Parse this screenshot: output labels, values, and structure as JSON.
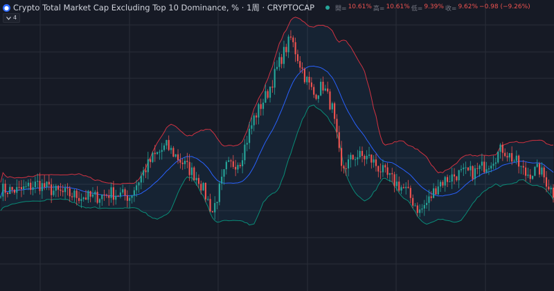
{
  "header": {
    "icon": "coin-icon",
    "title": "Crypto Total Market Cap Excluding Top 10 Dominance, % · 1周 · CRYPTOCAP",
    "ohlc": {
      "open_label": "開=",
      "open_value": "10.61%",
      "high_label": "高=",
      "high_value": "10.61%",
      "low_label": "低=",
      "low_value": "9.39%",
      "close_label": "收=",
      "close_value": "9.62%",
      "change": "−0.98 (−9.26%)"
    }
  },
  "indicator_toggle": {
    "icon": "chevron-down-icon",
    "count": "4"
  },
  "colors": {
    "background": "#161a25",
    "grid": "#2a2e39",
    "up": "#26a69a",
    "down": "#ef5350",
    "upper_band": "#f23645",
    "middle_band": "#2962ff",
    "lower_band": "#089981",
    "band_fill": "rgba(33,150,243,0.07)"
  },
  "chart_data": {
    "type": "candlestick",
    "bollinger_bands": true,
    "grid": true,
    "anchors": [
      [
        0,
        0.315
      ],
      [
        8,
        0.31
      ],
      [
        16,
        0.34
      ],
      [
        24,
        0.305
      ],
      [
        32,
        0.29
      ],
      [
        40,
        0.28
      ],
      [
        48,
        0.3
      ],
      [
        56,
        0.285
      ],
      [
        62,
        0.39
      ],
      [
        66,
        0.45
      ],
      [
        72,
        0.5
      ],
      [
        80,
        0.42
      ],
      [
        86,
        0.36
      ],
      [
        92,
        0.22
      ],
      [
        98,
        0.41
      ],
      [
        104,
        0.44
      ],
      [
        110,
        0.62
      ],
      [
        116,
        0.73
      ],
      [
        122,
        0.88
      ],
      [
        126,
        0.96
      ],
      [
        132,
        0.8
      ],
      [
        136,
        0.72
      ],
      [
        140,
        0.76
      ],
      [
        144,
        0.66
      ],
      [
        148,
        0.4
      ],
      [
        154,
        0.46
      ],
      [
        160,
        0.45
      ],
      [
        168,
        0.37
      ],
      [
        176,
        0.31
      ],
      [
        182,
        0.22
      ],
      [
        186,
        0.27
      ],
      [
        190,
        0.34
      ],
      [
        198,
        0.38
      ],
      [
        206,
        0.39
      ],
      [
        212,
        0.43
      ],
      [
        218,
        0.49
      ],
      [
        224,
        0.43
      ],
      [
        228,
        0.38
      ],
      [
        234,
        0.4
      ],
      [
        240,
        0.3
      ]
    ],
    "candle_count": 241,
    "last_close": 9.62
  }
}
